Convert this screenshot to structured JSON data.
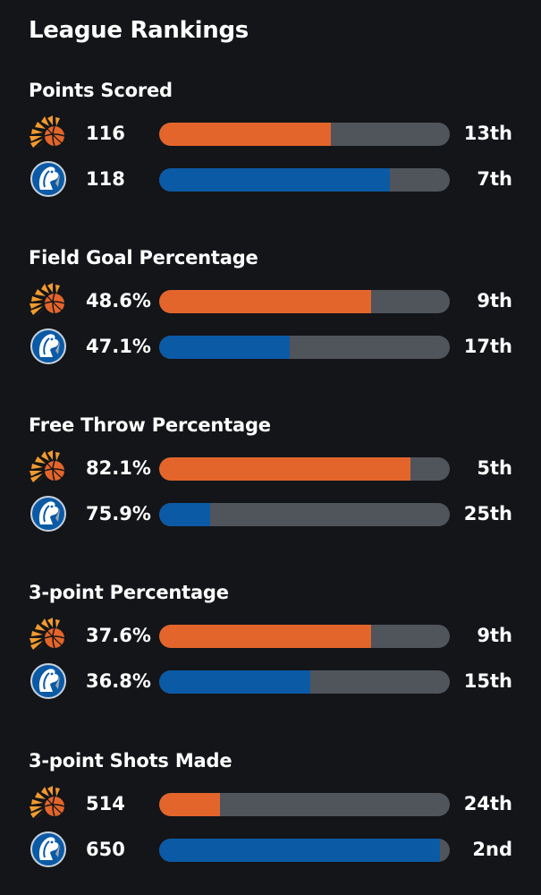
{
  "page_title": "League Rankings",
  "colors": {
    "background": "#131518",
    "track": "#50545b",
    "suns": "#e4652b",
    "mavericks": "#0b5aa6"
  },
  "teams": [
    {
      "key": "suns",
      "icon": "suns-basketball-logo-icon",
      "color": "#e4652b"
    },
    {
      "key": "mavericks",
      "icon": "mavericks-horse-logo-icon",
      "color": "#0b5aa6"
    }
  ],
  "sections": [
    {
      "title": "Points Scored",
      "rows": [
        {
          "team": "suns",
          "value": "116",
          "fill_fraction": 0.59,
          "rank": "13th"
        },
        {
          "team": "mavericks",
          "value": "118",
          "fill_fraction": 0.795,
          "rank": "7th"
        }
      ]
    },
    {
      "title": "Field Goal Percentage",
      "rows": [
        {
          "team": "suns",
          "value": "48.6%",
          "fill_fraction": 0.728,
          "rank": "9th"
        },
        {
          "team": "mavericks",
          "value": "47.1%",
          "fill_fraction": 0.45,
          "rank": "17th"
        }
      ]
    },
    {
      "title": "Free Throw Percentage",
      "rows": [
        {
          "team": "suns",
          "value": "82.1%",
          "fill_fraction": 0.865,
          "rank": "5th"
        },
        {
          "team": "mavericks",
          "value": "75.9%",
          "fill_fraction": 0.175,
          "rank": "25th"
        }
      ]
    },
    {
      "title": "3-point Percentage",
      "rows": [
        {
          "team": "suns",
          "value": "37.6%",
          "fill_fraction": 0.728,
          "rank": "9th"
        },
        {
          "team": "mavericks",
          "value": "36.8%",
          "fill_fraction": 0.52,
          "rank": "15th"
        }
      ]
    },
    {
      "title": "3-point Shots Made",
      "rows": [
        {
          "team": "suns",
          "value": "514",
          "fill_fraction": 0.21,
          "rank": "24th"
        },
        {
          "team": "mavericks",
          "value": "650",
          "fill_fraction": 0.967,
          "rank": "2nd"
        }
      ]
    }
  ]
}
